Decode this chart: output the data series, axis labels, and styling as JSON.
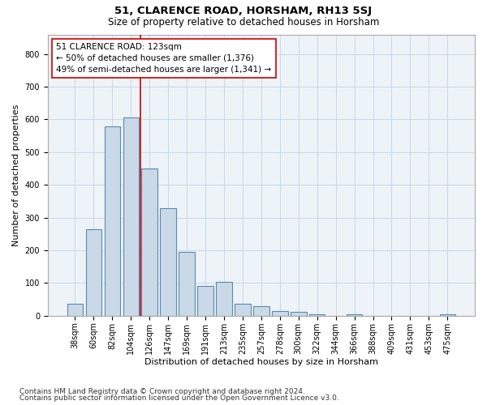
{
  "title": "51, CLARENCE ROAD, HORSHAM, RH13 5SJ",
  "subtitle": "Size of property relative to detached houses in Horsham",
  "xlabel": "Distribution of detached houses by size in Horsham",
  "ylabel": "Number of detached properties",
  "footnote1": "Contains HM Land Registry data © Crown copyright and database right 2024.",
  "footnote2": "Contains public sector information licensed under the Open Government Licence v3.0.",
  "categories": [
    "38sqm",
    "60sqm",
    "82sqm",
    "104sqm",
    "126sqm",
    "147sqm",
    "169sqm",
    "191sqm",
    "213sqm",
    "235sqm",
    "257sqm",
    "278sqm",
    "300sqm",
    "322sqm",
    "344sqm",
    "366sqm",
    "388sqm",
    "409sqm",
    "431sqm",
    "453sqm",
    "475sqm"
  ],
  "values": [
    37,
    265,
    580,
    605,
    450,
    330,
    195,
    90,
    103,
    37,
    30,
    14,
    11,
    5,
    0,
    4,
    0,
    0,
    0,
    0,
    5
  ],
  "bar_color": "#c9d9e8",
  "bar_edge_color": "#5a8ab0",
  "red_line_x": 3.5,
  "annotation_text": "51 CLARENCE ROAD: 123sqm\n← 50% of detached houses are smaller (1,376)\n49% of semi-detached houses are larger (1,341) →",
  "annotation_box_color": "#ffffff",
  "annotation_border_color": "#cc0000",
  "ylim": [
    0,
    860
  ],
  "yticks": [
    0,
    100,
    200,
    300,
    400,
    500,
    600,
    700,
    800
  ],
  "title_fontsize": 9.5,
  "subtitle_fontsize": 8.5,
  "tick_fontsize": 7,
  "label_fontsize": 8,
  "annotation_fontsize": 7.5,
  "footnote_fontsize": 6.5,
  "bg_color": "#ffffff",
  "plot_bg_color": "#eef3f8",
  "grid_color": "#c8d8e8"
}
